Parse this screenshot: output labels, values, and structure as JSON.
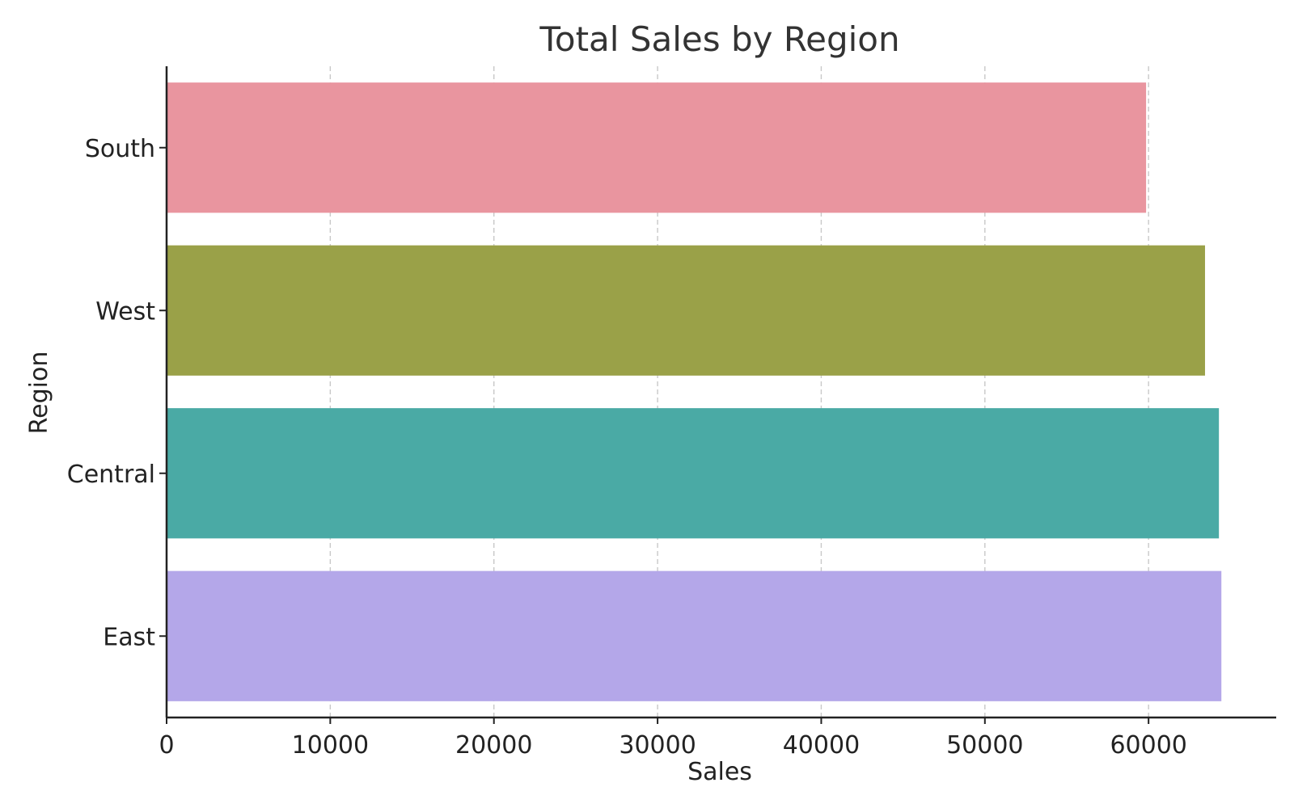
{
  "chart_data": {
    "type": "bar",
    "orientation": "horizontal",
    "title": "Total Sales by Region",
    "xlabel": "Sales",
    "ylabel": "Region",
    "categories": [
      "South",
      "West",
      "Central",
      "East"
    ],
    "values": [
      59850,
      63450,
      64300,
      64450
    ],
    "colors": [
      "#e9959f",
      "#9aa148",
      "#4aaaa5",
      "#b4a7e9"
    ],
    "xlim": [
      0,
      67800
    ],
    "xticks": [
      "0",
      "10000",
      "20000",
      "30000",
      "40000",
      "50000",
      "60000"
    ],
    "grid": "x-axis dashed"
  }
}
